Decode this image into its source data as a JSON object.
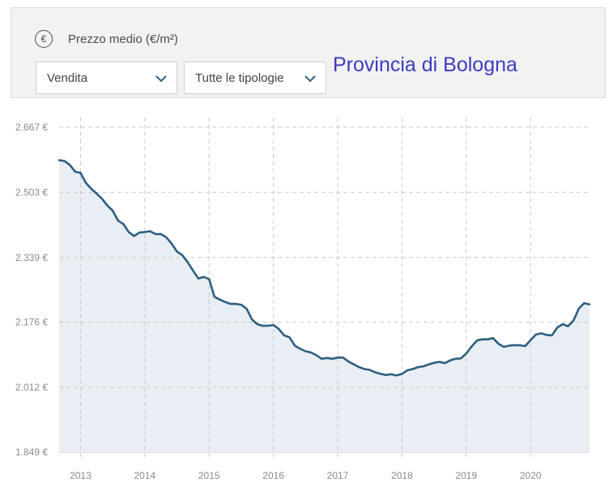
{
  "header": {
    "icon": "euro-circle-icon",
    "metric_label": "Prezzo medio (€/m²)",
    "contract_select": {
      "value": "Vendita",
      "icon": "chevron-down-icon"
    },
    "type_select": {
      "value": "Tutte le tipologie",
      "icon": "chevron-down-icon"
    },
    "region_title": "Provincia di Bologna",
    "title_color": "#3b3dc0"
  },
  "chart_data": {
    "type": "area",
    "title": "",
    "xlabel": "",
    "ylabel": "",
    "line_color": "#2e5f80",
    "fill_color": "#e8eef3",
    "grid": true,
    "x_ticks": [
      "2013",
      "2014",
      "2015",
      "2016",
      "2017",
      "2018",
      "2019",
      "2020"
    ],
    "y_ticks": [
      "1.849 €",
      "2.012 €",
      "2.176 €",
      "2.339 €",
      "2.503 €",
      "2.667 €"
    ],
    "ylim": [
      1849,
      2667
    ],
    "xlim": [
      2012.667,
      2020.917
    ],
    "x": [
      2012.667,
      2012.75,
      2012.833,
      2012.917,
      2013.0,
      2013.083,
      2013.167,
      2013.25,
      2013.333,
      2013.417,
      2013.5,
      2013.583,
      2013.667,
      2013.75,
      2013.833,
      2013.917,
      2014.0,
      2014.083,
      2014.167,
      2014.25,
      2014.333,
      2014.417,
      2014.5,
      2014.583,
      2014.667,
      2014.75,
      2014.833,
      2014.917,
      2015.0,
      2015.083,
      2015.167,
      2015.25,
      2015.333,
      2015.417,
      2015.5,
      2015.583,
      2015.667,
      2015.75,
      2015.833,
      2015.917,
      2016.0,
      2016.083,
      2016.167,
      2016.25,
      2016.333,
      2016.417,
      2016.5,
      2016.583,
      2016.667,
      2016.75,
      2016.833,
      2016.917,
      2017.0,
      2017.083,
      2017.167,
      2017.25,
      2017.333,
      2017.417,
      2017.5,
      2017.583,
      2017.667,
      2017.75,
      2017.833,
      2017.917,
      2018.0,
      2018.083,
      2018.167,
      2018.25,
      2018.333,
      2018.417,
      2018.5,
      2018.583,
      2018.667,
      2018.75,
      2018.833,
      2018.917,
      2019.0,
      2019.083,
      2019.167,
      2019.25,
      2019.333,
      2019.417,
      2019.5,
      2019.583,
      2019.667,
      2019.75,
      2019.833,
      2019.917,
      2020.0,
      2020.083,
      2020.167,
      2020.25,
      2020.333,
      2020.417,
      2020.5,
      2020.583,
      2020.667,
      2020.75,
      2020.833,
      2020.917
    ],
    "y": [
      2584,
      2582,
      2572,
      2555,
      2552,
      2527,
      2512,
      2500,
      2487,
      2470,
      2457,
      2432,
      2423,
      2403,
      2393,
      2402,
      2403,
      2405,
      2398,
      2398,
      2390,
      2374,
      2354,
      2345,
      2327,
      2306,
      2286,
      2290,
      2285,
      2240,
      2233,
      2227,
      2222,
      2222,
      2220,
      2210,
      2183,
      2171,
      2167,
      2167,
      2169,
      2159,
      2143,
      2138,
      2117,
      2109,
      2103,
      2100,
      2093,
      2084,
      2086,
      2084,
      2087,
      2087,
      2077,
      2070,
      2063,
      2058,
      2056,
      2050,
      2046,
      2043,
      2045,
      2042,
      2046,
      2055,
      2058,
      2063,
      2065,
      2070,
      2074,
      2076,
      2073,
      2080,
      2084,
      2085,
      2097,
      2115,
      2130,
      2133,
      2133,
      2136,
      2122,
      2114,
      2117,
      2118,
      2118,
      2116,
      2131,
      2145,
      2148,
      2144,
      2143,
      2163,
      2171,
      2166,
      2180,
      2210,
      2224,
      2221
    ]
  }
}
